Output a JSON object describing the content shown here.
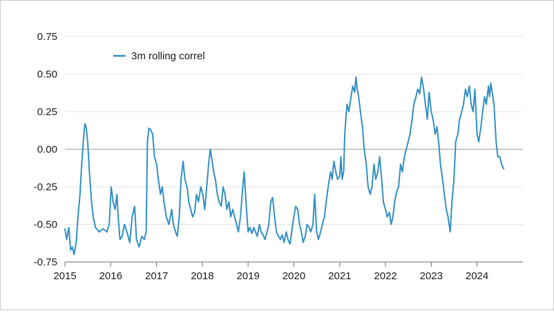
{
  "chart_data": {
    "type": "line",
    "title": "",
    "xlabel": "",
    "ylabel": "",
    "x_axis": {
      "type": "date",
      "range": [
        "2015-01-01",
        "2024-12-31"
      ],
      "tick_labels": [
        "2015",
        "2016",
        "2017",
        "2018",
        "2019",
        "2020",
        "2021",
        "2022",
        "2023",
        "2024"
      ]
    },
    "y_axis": {
      "range": [
        -0.75,
        0.75
      ],
      "tick_values": [
        0.75,
        0.5,
        0.25,
        0.0,
        -0.25,
        -0.5,
        -0.75
      ],
      "tick_labels": [
        "0.75",
        "0.50",
        "0.25",
        "0.00",
        "-0.25",
        "-0.50",
        "-0.75"
      ]
    },
    "grid": "horizontal",
    "zero_line": true,
    "legend": {
      "position": "top-left",
      "entries": [
        "3m rolling correl"
      ]
    },
    "series": [
      {
        "name": "3m rolling correl",
        "color": "#2f8fc4",
        "points": [
          [
            "2015-01-01",
            -0.53
          ],
          [
            "2015-01-15",
            -0.6
          ],
          [
            "2015-02-01",
            -0.52
          ],
          [
            "2015-02-15",
            -0.67
          ],
          [
            "2015-03-01",
            -0.65
          ],
          [
            "2015-03-15",
            -0.7
          ],
          [
            "2015-04-01",
            -0.62
          ],
          [
            "2015-04-15",
            -0.45
          ],
          [
            "2015-05-01",
            -0.3
          ],
          [
            "2015-05-15",
            -0.1
          ],
          [
            "2015-06-01",
            0.1
          ],
          [
            "2015-06-10",
            0.17
          ],
          [
            "2015-06-20",
            0.14
          ],
          [
            "2015-07-01",
            0.05
          ],
          [
            "2015-07-15",
            -0.15
          ],
          [
            "2015-08-01",
            -0.35
          ],
          [
            "2015-08-15",
            -0.45
          ],
          [
            "2015-09-01",
            -0.52
          ],
          [
            "2015-10-01",
            -0.55
          ],
          [
            "2015-11-01",
            -0.53
          ],
          [
            "2015-12-01",
            -0.55
          ],
          [
            "2015-12-20",
            -0.5
          ],
          [
            "2016-01-05",
            -0.25
          ],
          [
            "2016-01-20",
            -0.35
          ],
          [
            "2016-02-05",
            -0.4
          ],
          [
            "2016-02-20",
            -0.3
          ],
          [
            "2016-03-01",
            -0.45
          ],
          [
            "2016-03-15",
            -0.6
          ],
          [
            "2016-04-01",
            -0.58
          ],
          [
            "2016-04-20",
            -0.5
          ],
          [
            "2016-05-10",
            -0.55
          ],
          [
            "2016-06-01",
            -0.62
          ],
          [
            "2016-06-20",
            -0.45
          ],
          [
            "2016-07-10",
            -0.38
          ],
          [
            "2016-07-25",
            -0.6
          ],
          [
            "2016-08-15",
            -0.65
          ],
          [
            "2016-09-05",
            -0.58
          ],
          [
            "2016-09-25",
            -0.6
          ],
          [
            "2016-10-10",
            -0.55
          ],
          [
            "2016-10-20",
            0.05
          ],
          [
            "2016-11-01",
            0.14
          ],
          [
            "2016-11-15",
            0.13
          ],
          [
            "2016-12-01",
            0.1
          ],
          [
            "2016-12-15",
            -0.05
          ],
          [
            "2017-01-01",
            -0.1
          ],
          [
            "2017-01-15",
            -0.2
          ],
          [
            "2017-02-01",
            -0.3
          ],
          [
            "2017-02-15",
            -0.25
          ],
          [
            "2017-03-01",
            -0.35
          ],
          [
            "2017-03-20",
            -0.45
          ],
          [
            "2017-04-10",
            -0.5
          ],
          [
            "2017-05-01",
            -0.4
          ],
          [
            "2017-05-15",
            -0.5
          ],
          [
            "2017-06-01",
            -0.55
          ],
          [
            "2017-06-15",
            -0.58
          ],
          [
            "2017-07-01",
            -0.45
          ],
          [
            "2017-07-15",
            -0.2
          ],
          [
            "2017-08-01",
            -0.08
          ],
          [
            "2017-08-15",
            -0.2
          ],
          [
            "2017-09-01",
            -0.25
          ],
          [
            "2017-09-15",
            -0.35
          ],
          [
            "2017-10-01",
            -0.4
          ],
          [
            "2017-10-15",
            -0.45
          ],
          [
            "2017-11-01",
            -0.42
          ],
          [
            "2017-11-15",
            -0.3
          ],
          [
            "2017-12-01",
            -0.35
          ],
          [
            "2017-12-20",
            -0.25
          ],
          [
            "2018-01-05",
            -0.3
          ],
          [
            "2018-01-20",
            -0.4
          ],
          [
            "2018-02-05",
            -0.25
          ],
          [
            "2018-02-20",
            -0.1
          ],
          [
            "2018-03-05",
            0.0
          ],
          [
            "2018-03-15",
            -0.05
          ],
          [
            "2018-04-01",
            -0.15
          ],
          [
            "2018-04-15",
            -0.2
          ],
          [
            "2018-05-01",
            -0.3
          ],
          [
            "2018-05-15",
            -0.35
          ],
          [
            "2018-06-01",
            -0.38
          ],
          [
            "2018-06-15",
            -0.25
          ],
          [
            "2018-07-01",
            -0.3
          ],
          [
            "2018-07-15",
            -0.4
          ],
          [
            "2018-08-01",
            -0.35
          ],
          [
            "2018-08-15",
            -0.45
          ],
          [
            "2018-09-01",
            -0.4
          ],
          [
            "2018-09-15",
            -0.45
          ],
          [
            "2018-10-01",
            -0.5
          ],
          [
            "2018-10-15",
            -0.55
          ],
          [
            "2018-11-01",
            -0.45
          ],
          [
            "2018-11-15",
            -0.3
          ],
          [
            "2018-12-01",
            -0.15
          ],
          [
            "2018-12-15",
            -0.35
          ],
          [
            "2019-01-01",
            -0.55
          ],
          [
            "2019-01-15",
            -0.52
          ],
          [
            "2019-02-01",
            -0.56
          ],
          [
            "2019-02-15",
            -0.52
          ],
          [
            "2019-03-01",
            -0.55
          ],
          [
            "2019-03-15",
            -0.58
          ],
          [
            "2019-04-01",
            -0.5
          ],
          [
            "2019-04-15",
            -0.55
          ],
          [
            "2019-05-01",
            -0.57
          ],
          [
            "2019-05-15",
            -0.6
          ],
          [
            "2019-06-01",
            -0.55
          ],
          [
            "2019-06-15",
            -0.5
          ],
          [
            "2019-07-01",
            -0.35
          ],
          [
            "2019-07-15",
            -0.32
          ],
          [
            "2019-08-01",
            -0.45
          ],
          [
            "2019-08-15",
            -0.55
          ],
          [
            "2019-09-01",
            -0.58
          ],
          [
            "2019-09-15",
            -0.6
          ],
          [
            "2019-10-01",
            -0.57
          ],
          [
            "2019-10-15",
            -0.62
          ],
          [
            "2019-11-01",
            -0.55
          ],
          [
            "2019-11-15",
            -0.6
          ],
          [
            "2019-12-01",
            -0.63
          ],
          [
            "2019-12-15",
            -0.55
          ],
          [
            "2020-01-01",
            -0.45
          ],
          [
            "2020-01-15",
            -0.38
          ],
          [
            "2020-02-01",
            -0.4
          ],
          [
            "2020-02-15",
            -0.5
          ],
          [
            "2020-03-01",
            -0.55
          ],
          [
            "2020-03-15",
            -0.62
          ],
          [
            "2020-04-01",
            -0.58
          ],
          [
            "2020-04-15",
            -0.5
          ],
          [
            "2020-05-01",
            -0.52
          ],
          [
            "2020-05-15",
            -0.55
          ],
          [
            "2020-06-01",
            -0.5
          ],
          [
            "2020-06-15",
            -0.3
          ],
          [
            "2020-07-01",
            -0.55
          ],
          [
            "2020-07-15",
            -0.6
          ],
          [
            "2020-08-01",
            -0.55
          ],
          [
            "2020-08-15",
            -0.5
          ],
          [
            "2020-09-01",
            -0.45
          ],
          [
            "2020-09-15",
            -0.35
          ],
          [
            "2020-10-01",
            -0.25
          ],
          [
            "2020-10-10",
            -0.2
          ],
          [
            "2020-10-20",
            -0.15
          ],
          [
            "2020-11-01",
            -0.2
          ],
          [
            "2020-11-15",
            -0.08
          ],
          [
            "2020-12-01",
            -0.15
          ],
          [
            "2020-12-15",
            -0.2
          ],
          [
            "2021-01-01",
            -0.18
          ],
          [
            "2021-01-10",
            -0.05
          ],
          [
            "2021-01-20",
            -0.2
          ],
          [
            "2021-02-01",
            -0.15
          ],
          [
            "2021-02-10",
            0.1
          ],
          [
            "2021-02-20",
            0.22
          ],
          [
            "2021-03-01",
            0.3
          ],
          [
            "2021-03-15",
            0.25
          ],
          [
            "2021-04-01",
            0.35
          ],
          [
            "2021-04-15",
            0.42
          ],
          [
            "2021-05-01",
            0.38
          ],
          [
            "2021-05-10",
            0.48
          ],
          [
            "2021-05-20",
            0.4
          ],
          [
            "2021-06-01",
            0.35
          ],
          [
            "2021-06-15",
            0.25
          ],
          [
            "2021-07-01",
            0.15
          ],
          [
            "2021-07-15",
            0.0
          ],
          [
            "2021-08-01",
            -0.1
          ],
          [
            "2021-08-15",
            -0.25
          ],
          [
            "2021-09-01",
            -0.3
          ],
          [
            "2021-09-15",
            -0.25
          ],
          [
            "2021-10-01",
            -0.1
          ],
          [
            "2021-10-15",
            -0.2
          ],
          [
            "2021-11-01",
            -0.15
          ],
          [
            "2021-11-15",
            -0.05
          ],
          [
            "2021-12-01",
            -0.2
          ],
          [
            "2021-12-15",
            -0.35
          ],
          [
            "2022-01-01",
            -0.4
          ],
          [
            "2022-01-15",
            -0.45
          ],
          [
            "2022-02-01",
            -0.42
          ],
          [
            "2022-02-15",
            -0.5
          ],
          [
            "2022-03-01",
            -0.45
          ],
          [
            "2022-03-15",
            -0.35
          ],
          [
            "2022-04-01",
            -0.28
          ],
          [
            "2022-04-15",
            -0.25
          ],
          [
            "2022-05-01",
            -0.1
          ],
          [
            "2022-05-15",
            -0.15
          ],
          [
            "2022-06-01",
            -0.05
          ],
          [
            "2022-06-15",
            0.0
          ],
          [
            "2022-07-01",
            0.05
          ],
          [
            "2022-07-15",
            0.1
          ],
          [
            "2022-08-01",
            0.2
          ],
          [
            "2022-08-15",
            0.3
          ],
          [
            "2022-09-01",
            0.35
          ],
          [
            "2022-09-15",
            0.4
          ],
          [
            "2022-10-01",
            0.37
          ],
          [
            "2022-10-15",
            0.48
          ],
          [
            "2022-11-01",
            0.4
          ],
          [
            "2022-11-15",
            0.3
          ],
          [
            "2022-12-01",
            0.2
          ],
          [
            "2022-12-15",
            0.38
          ],
          [
            "2023-01-01",
            0.25
          ],
          [
            "2023-01-15",
            0.2
          ],
          [
            "2023-02-01",
            0.1
          ],
          [
            "2023-02-15",
            0.15
          ],
          [
            "2023-03-01",
            0.05
          ],
          [
            "2023-03-15",
            -0.1
          ],
          [
            "2023-04-01",
            -0.2
          ],
          [
            "2023-04-15",
            -0.3
          ],
          [
            "2023-05-01",
            -0.4
          ],
          [
            "2023-05-15",
            -0.45
          ],
          [
            "2023-06-01",
            -0.55
          ],
          [
            "2023-06-15",
            -0.35
          ],
          [
            "2023-07-01",
            -0.2
          ],
          [
            "2023-07-15",
            0.05
          ],
          [
            "2023-08-01",
            0.1
          ],
          [
            "2023-08-15",
            0.2
          ],
          [
            "2023-09-01",
            0.25
          ],
          [
            "2023-09-15",
            0.3
          ],
          [
            "2023-10-01",
            0.4
          ],
          [
            "2023-10-15",
            0.35
          ],
          [
            "2023-11-01",
            0.42
          ],
          [
            "2023-11-15",
            0.3
          ],
          [
            "2023-12-01",
            0.25
          ],
          [
            "2023-12-15",
            0.4
          ],
          [
            "2024-01-01",
            0.1
          ],
          [
            "2024-01-15",
            0.05
          ],
          [
            "2024-02-01",
            0.15
          ],
          [
            "2024-02-15",
            0.25
          ],
          [
            "2024-03-01",
            0.35
          ],
          [
            "2024-03-15",
            0.3
          ],
          [
            "2024-04-01",
            0.42
          ],
          [
            "2024-04-10",
            0.35
          ],
          [
            "2024-04-20",
            0.44
          ],
          [
            "2024-05-01",
            0.38
          ],
          [
            "2024-05-15",
            0.3
          ],
          [
            "2024-06-01",
            0.05
          ],
          [
            "2024-06-15",
            -0.05
          ],
          [
            "2024-07-01",
            -0.05
          ],
          [
            "2024-07-15",
            -0.1
          ],
          [
            "2024-08-01",
            -0.13
          ]
        ]
      }
    ]
  }
}
